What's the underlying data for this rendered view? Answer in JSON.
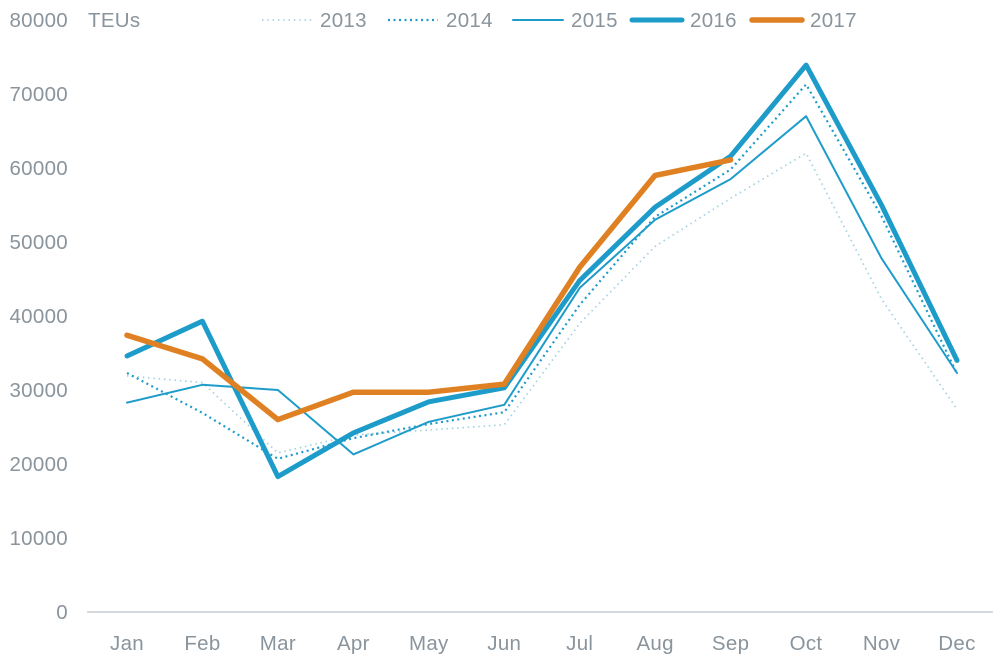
{
  "unit_label": "TEUs",
  "colors": {
    "teal": "#1E9CC9",
    "teal_light": "#A6D3E3",
    "orange": "#DF8122",
    "axis_text": "#8A949C",
    "axis_line": "#C9CDD1"
  },
  "legend": [
    "2013",
    "2014",
    "2015",
    "2016",
    "2017"
  ],
  "chart_data": {
    "type": "line",
    "categories": [
      "Jan",
      "Feb",
      "Mar",
      "Apr",
      "May",
      "Jun",
      "Jul",
      "Aug",
      "Sep",
      "Oct",
      "Nov",
      "Dec"
    ],
    "ylabel": "TEUs",
    "ylim": [
      0,
      80000
    ],
    "ytick_step": 10000,
    "grid": false,
    "legend_position": "top",
    "series": [
      {
        "name": "2013",
        "style": "dotted-light",
        "values": [
          31900,
          31000,
          21500,
          23900,
          24600,
          25300,
          39000,
          49400,
          55900,
          62000,
          42300,
          27400
        ]
      },
      {
        "name": "2014",
        "style": "dotted",
        "values": [
          32300,
          26900,
          20700,
          23500,
          25400,
          27000,
          41500,
          53400,
          59800,
          71300,
          53500,
          32200
        ]
      },
      {
        "name": "2015",
        "style": "thin",
        "values": [
          28300,
          30700,
          30000,
          21300,
          25700,
          28000,
          43800,
          53000,
          58500,
          67000,
          47800,
          32300
        ]
      },
      {
        "name": "2016",
        "style": "thick",
        "values": [
          34600,
          39300,
          18300,
          24200,
          28400,
          30300,
          44800,
          54700,
          61600,
          73900,
          55000,
          34000
        ]
      },
      {
        "name": "2017",
        "style": "thick-orange",
        "values": [
          37400,
          34200,
          26000,
          29700,
          29700,
          30800,
          46600,
          59000,
          61100,
          null,
          null,
          null
        ]
      }
    ]
  }
}
